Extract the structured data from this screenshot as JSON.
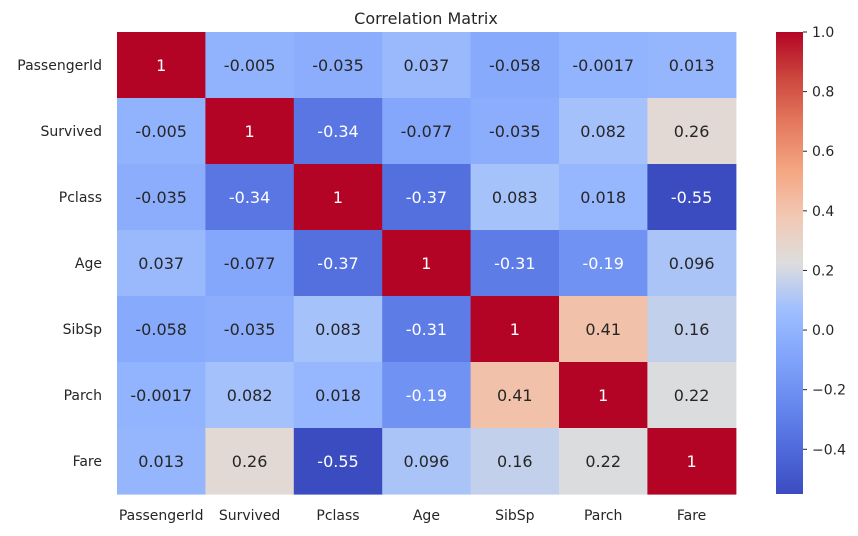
{
  "chart_data": {
    "type": "heatmap",
    "title": "Correlation Matrix",
    "xlabel": "",
    "ylabel": "",
    "x_categories": [
      "PassengerId",
      "Survived",
      "Pclass",
      "Age",
      "SibSp",
      "Parch",
      "Fare"
    ],
    "y_categories": [
      "PassengerId",
      "Survived",
      "Pclass",
      "Age",
      "SibSp",
      "Parch",
      "Fare"
    ],
    "values": [
      [
        1,
        -0.005,
        -0.035,
        0.037,
        -0.058,
        -0.0017,
        0.013
      ],
      [
        -0.005,
        1,
        -0.34,
        -0.077,
        -0.035,
        0.082,
        0.26
      ],
      [
        -0.035,
        -0.34,
        1,
        -0.37,
        0.083,
        0.018,
        -0.55
      ],
      [
        0.037,
        -0.077,
        -0.37,
        1,
        -0.31,
        -0.19,
        0.096
      ],
      [
        -0.058,
        -0.035,
        0.083,
        -0.31,
        1,
        0.41,
        0.16
      ],
      [
        -0.0017,
        0.082,
        0.018,
        -0.19,
        0.41,
        1,
        0.22
      ],
      [
        0.013,
        0.26,
        -0.55,
        0.096,
        0.16,
        0.22,
        1
      ]
    ],
    "cell_labels": [
      [
        "1",
        "-0.005",
        "-0.035",
        "0.037",
        "-0.058",
        "-0.0017",
        "0.013"
      ],
      [
        "-0.005",
        "1",
        "-0.34",
        "-0.077",
        "-0.035",
        "0.082",
        "0.26"
      ],
      [
        "-0.035",
        "-0.34",
        "1",
        "-0.37",
        "0.083",
        "0.018",
        "-0.55"
      ],
      [
        "0.037",
        "-0.077",
        "-0.37",
        "1",
        "-0.31",
        "-0.19",
        "0.096"
      ],
      [
        "-0.058",
        "-0.035",
        "0.083",
        "-0.31",
        "1",
        "0.41",
        "0.16"
      ],
      [
        "-0.0017",
        "0.082",
        "0.018",
        "-0.19",
        "0.41",
        "1",
        "0.22"
      ],
      [
        "0.013",
        "0.26",
        "-0.55",
        "0.096",
        "0.16",
        "0.22",
        "1"
      ]
    ],
    "colormap": "coolwarm",
    "vmin": -0.55,
    "vmax": 1.0,
    "colorbar_ticks": [
      1.0,
      0.8,
      0.6,
      0.4,
      0.2,
      0.0,
      -0.2,
      -0.4
    ],
    "colorbar_tick_labels": [
      "1.0",
      "0.8",
      "0.6",
      "0.4",
      "0.2",
      "0.0",
      "−0.2",
      "−0.4"
    ],
    "grid": false,
    "legend": "colorbar-right",
    "colors": {
      "cmap_low": "#3b4cc0",
      "cmap_mid": "#dddddd",
      "cmap_high": "#b40426",
      "text_dark": "#262626",
      "text_light": "#ffffff"
    }
  }
}
